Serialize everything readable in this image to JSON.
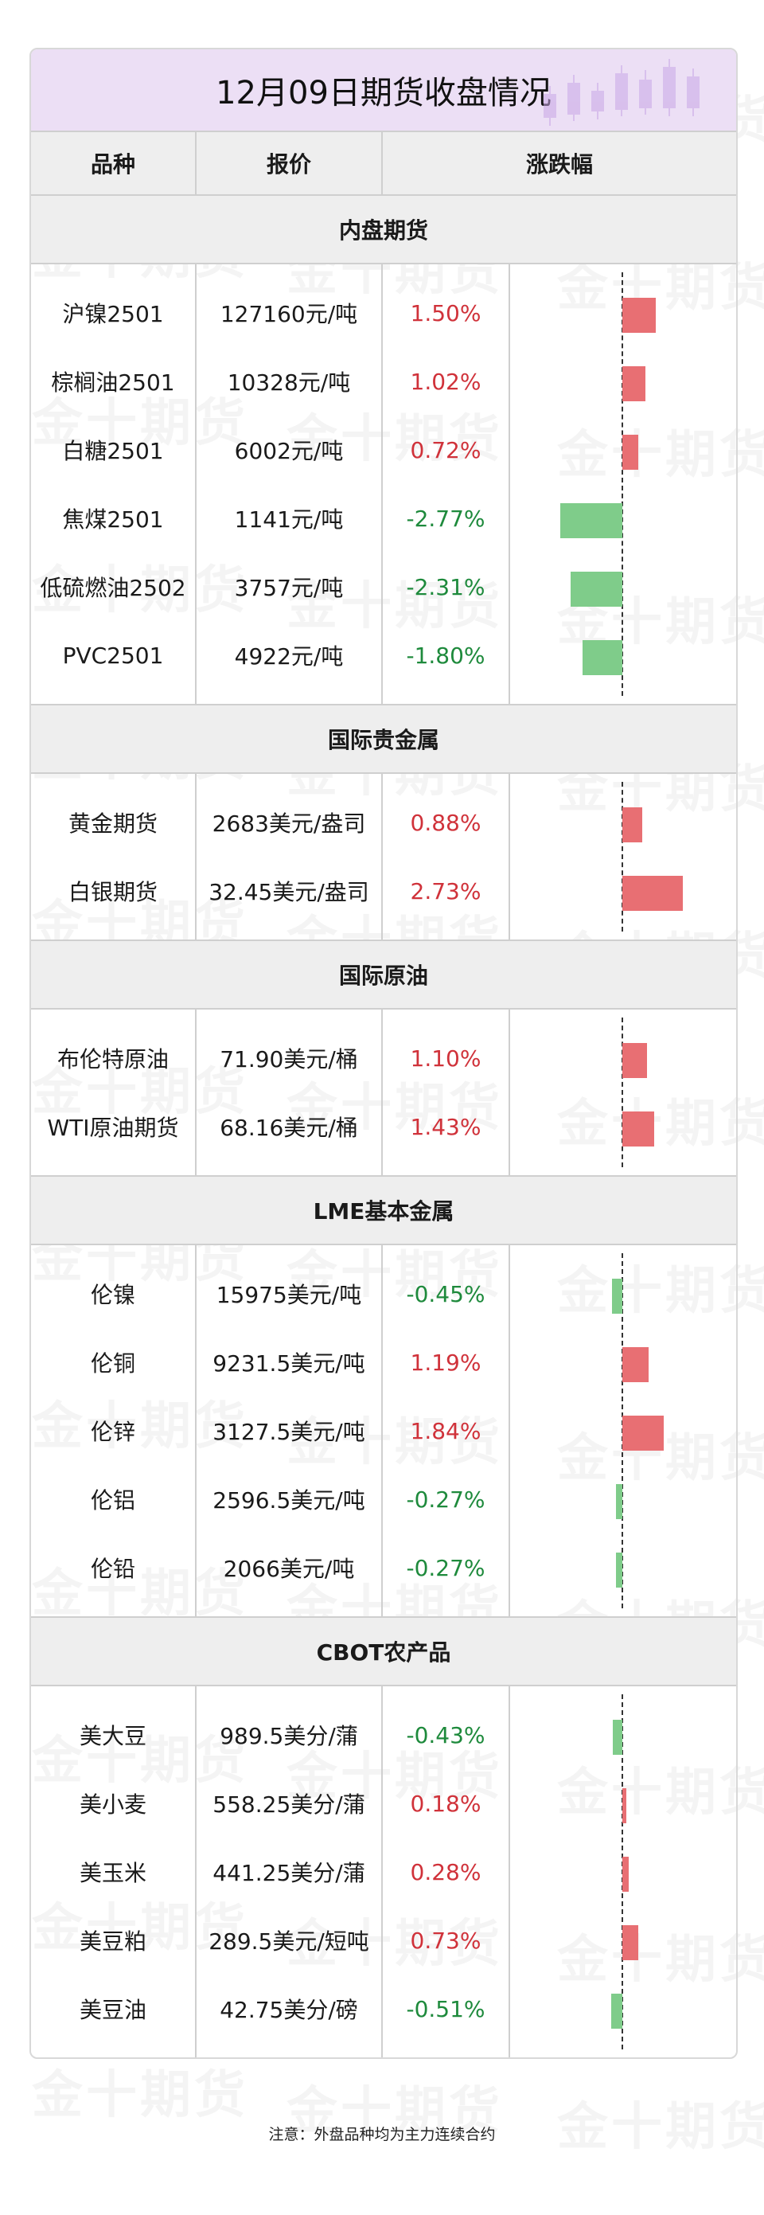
{
  "title": "12月09日期货收盘情况",
  "header": {
    "col_name": "品种",
    "col_price": "报价",
    "col_change": "涨跌幅"
  },
  "watermark": "金十期货",
  "bar_colors": {
    "up": "#e86f73",
    "down": "#7fcc8a"
  },
  "sections": [
    {
      "title": "内盘期货",
      "rows": [
        {
          "name": "沪镍2501",
          "price": "127160元/吨",
          "change": "1.50%",
          "value": 1.5
        },
        {
          "name": "棕榈油2501",
          "price": "10328元/吨",
          "change": "1.02%",
          "value": 1.02
        },
        {
          "name": "白糖2501",
          "price": "6002元/吨",
          "change": "0.72%",
          "value": 0.72
        },
        {
          "name": "焦煤2501",
          "price": "1141元/吨",
          "change": "-2.77%",
          "value": -2.77
        },
        {
          "name": "低硫燃油2502",
          "price": "3757元/吨",
          "change": "-2.31%",
          "value": -2.31
        },
        {
          "name": "PVC2501",
          "price": "4922元/吨",
          "change": "-1.80%",
          "value": -1.8
        }
      ]
    },
    {
      "title": "国际贵金属",
      "rows": [
        {
          "name": "黄金期货",
          "price": "2683美元/盎司",
          "change": "0.88%",
          "value": 0.88
        },
        {
          "name": "白银期货",
          "price": "32.45美元/盎司",
          "change": "2.73%",
          "value": 2.73
        }
      ]
    },
    {
      "title": "国际原油",
      "rows": [
        {
          "name": "布伦特原油",
          "price": "71.90美元/桶",
          "change": "1.10%",
          "value": 1.1
        },
        {
          "name": "WTI原油期货",
          "price": "68.16美元/桶",
          "change": "1.43%",
          "value": 1.43
        }
      ]
    },
    {
      "title": "LME基本金属",
      "rows": [
        {
          "name": "伦镍",
          "price": "15975美元/吨",
          "change": "-0.45%",
          "value": -0.45
        },
        {
          "name": "伦铜",
          "price": "9231.5美元/吨",
          "change": "1.19%",
          "value": 1.19
        },
        {
          "name": "伦锌",
          "price": "3127.5美元/吨",
          "change": "1.84%",
          "value": 1.84
        },
        {
          "name": "伦铝",
          "price": "2596.5美元/吨",
          "change": "-0.27%",
          "value": -0.27
        },
        {
          "name": "伦铅",
          "price": "2066美元/吨",
          "change": "-0.27%",
          "value": -0.27
        }
      ]
    },
    {
      "title": "CBOT农产品",
      "rows": [
        {
          "name": "美大豆",
          "price": "989.5美分/蒲",
          "change": "-0.43%",
          "value": -0.43
        },
        {
          "name": "美小麦",
          "price": "558.25美分/蒲",
          "change": "0.18%",
          "value": 0.18
        },
        {
          "name": "美玉米",
          "price": "441.25美分/蒲",
          "change": "0.28%",
          "value": 0.28
        },
        {
          "name": "美豆粕",
          "price": "289.5美元/短吨",
          "change": "0.73%",
          "value": 0.73
        },
        {
          "name": "美豆油",
          "price": "42.75美分/磅",
          "change": "-0.51%",
          "value": -0.51
        }
      ]
    }
  ],
  "note": "注意：外盘品种均为主力连续合约"
}
